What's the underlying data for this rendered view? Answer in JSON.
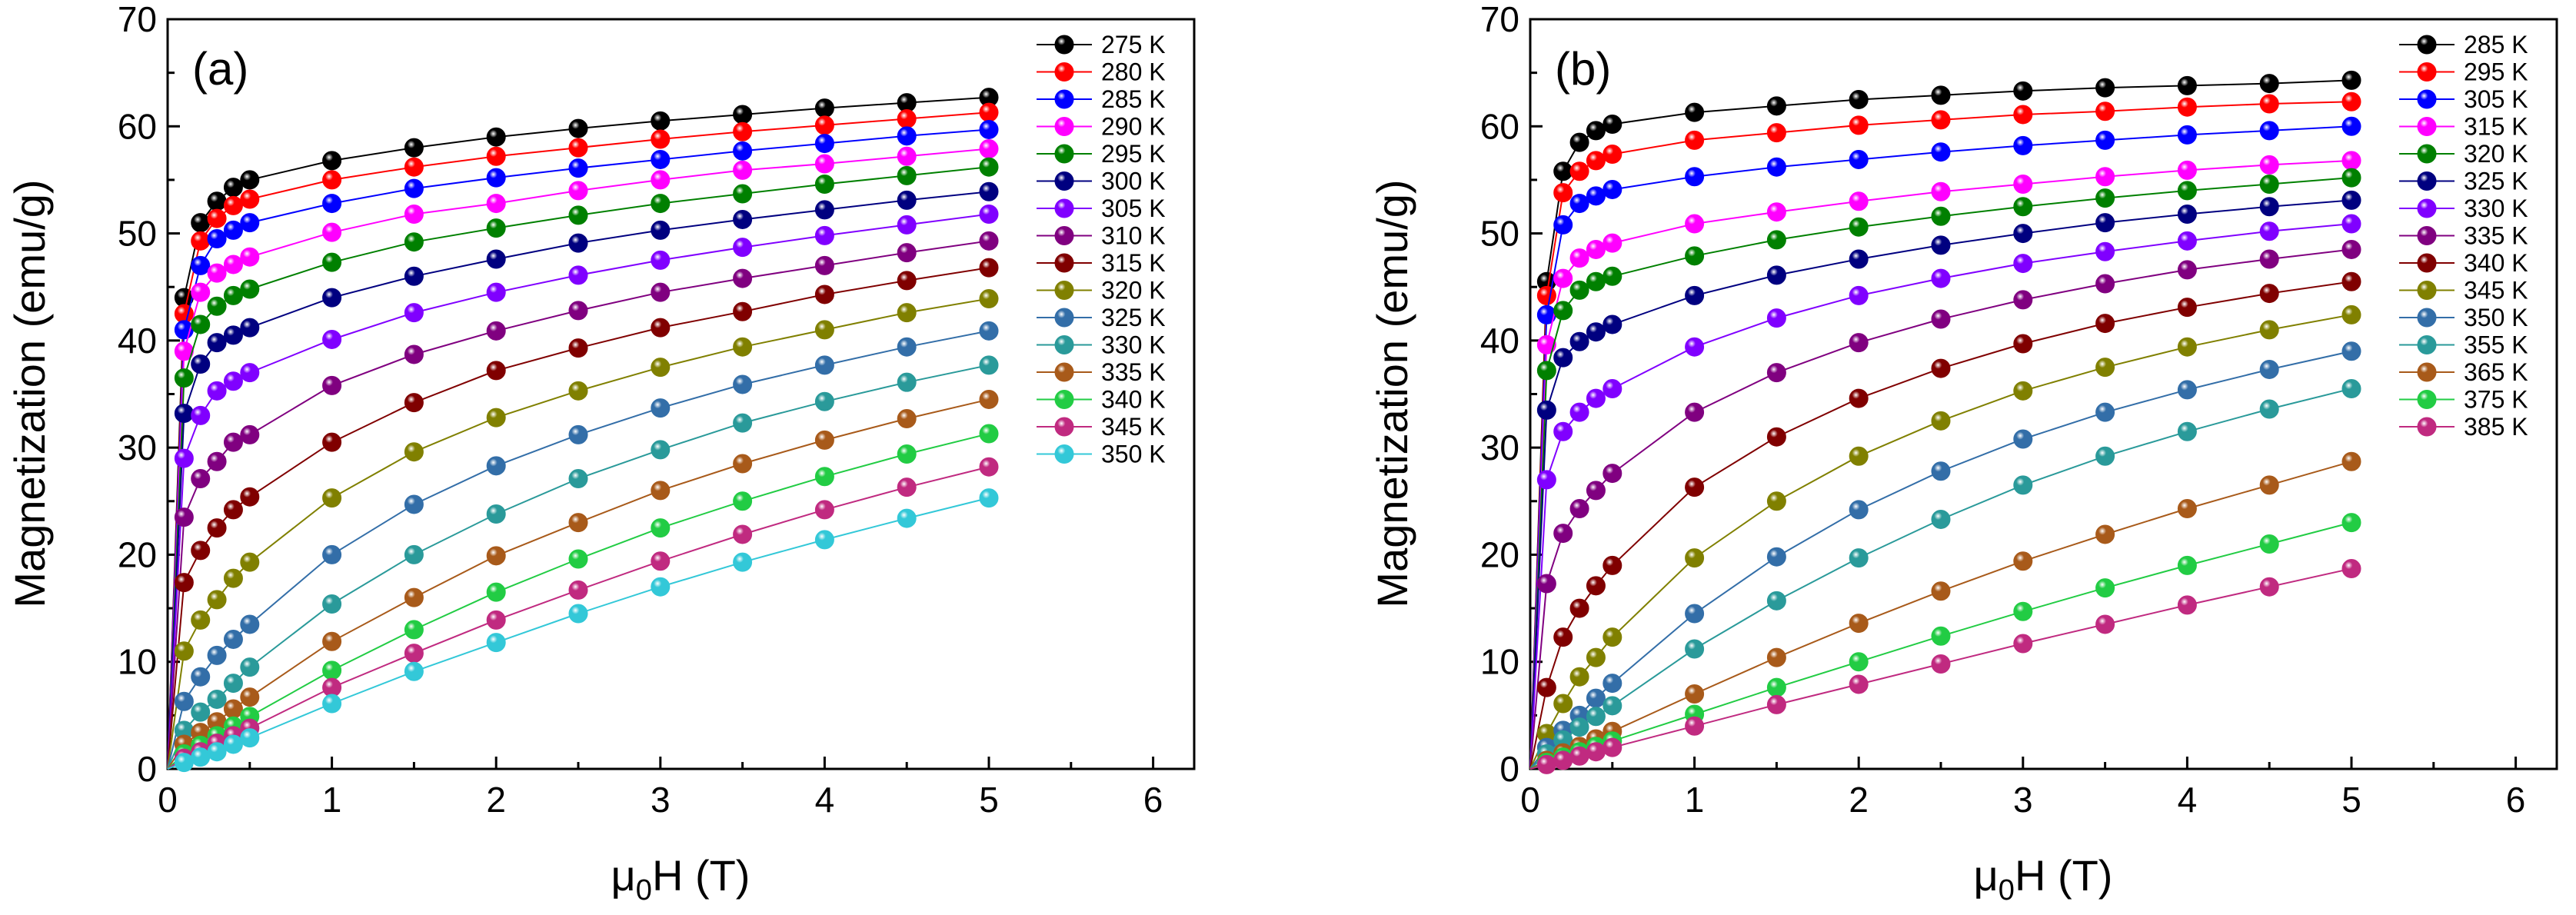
{
  "colors": {
    "275 K": "#000000",
    "280 K": "#ff0000",
    "285 K": "#0000ff",
    "290 K": "#ff00ff",
    "295 K": "#008000",
    "300 K": "#000080",
    "305 K": "#8000ff",
    "310 K": "#800080",
    "315 K": "#800000",
    "320 K": "#808000",
    "325 K": "#336ea8",
    "330 K": "#2a9a9a",
    "335 K": "#a85a1a",
    "340 K": "#22cc44",
    "345 K": "#c02a80",
    "350 K": "#33c8d8"
  },
  "colors_b": {
    "285 K": "#000000",
    "295 K": "#ff0000",
    "305 K": "#0000ff",
    "315 K": "#ff00ff",
    "320 K": "#008000",
    "325 K": "#000080",
    "330 K": "#8000ff",
    "335 K": "#800080",
    "340 K": "#800000",
    "345 K": "#808000",
    "350 K": "#336ea8",
    "355 K": "#2a9a9a",
    "365 K": "#a85a1a",
    "375 K": "#22cc44",
    "385 K": "#c02a80"
  },
  "chart_data": [
    {
      "panel_label": "(a)",
      "type": "line",
      "xlabel_main": "μ",
      "xlabel_sub": "0",
      "xlabel_rest": "H (T)",
      "ylabel": "Magnetization (emu/g)",
      "xlim": [
        0,
        6.25
      ],
      "ylim": [
        0,
        70
      ],
      "xticks": [
        "0",
        "1",
        "2",
        "3",
        "4",
        "5",
        "6"
      ],
      "yticks": [
        "0",
        "10",
        "20",
        "30",
        "40",
        "50",
        "60",
        "70"
      ],
      "legend_position": "top-right",
      "x": [
        0,
        0.1,
        0.2,
        0.3,
        0.4,
        0.5,
        1,
        1.5,
        2,
        2.5,
        3,
        3.5,
        4,
        4.5,
        5
      ],
      "series": [
        {
          "name": "275 K",
          "values": [
            0,
            44,
            51,
            53,
            54.3,
            55,
            56.8,
            58,
            59,
            59.8,
            60.5,
            61.1,
            61.7,
            62.2,
            62.7
          ]
        },
        {
          "name": "280 K",
          "values": [
            0,
            42.5,
            49.3,
            51.4,
            52.6,
            53.2,
            55,
            56.2,
            57.2,
            58,
            58.8,
            59.5,
            60.1,
            60.7,
            61.3
          ]
        },
        {
          "name": "285 K",
          "values": [
            0,
            41,
            47,
            49.5,
            50.3,
            51,
            52.8,
            54.2,
            55.2,
            56.1,
            56.9,
            57.7,
            58.4,
            59.1,
            59.7
          ]
        },
        {
          "name": "290 K",
          "values": [
            0,
            39,
            44.5,
            46.3,
            47.1,
            47.8,
            50.1,
            51.8,
            52.8,
            54,
            55,
            55.9,
            56.5,
            57.2,
            57.9
          ]
        },
        {
          "name": "295 K",
          "values": [
            0,
            36.5,
            41.5,
            43.2,
            44.2,
            44.8,
            47.3,
            49.2,
            50.5,
            51.7,
            52.8,
            53.7,
            54.6,
            55.4,
            56.2
          ]
        },
        {
          "name": "300 K",
          "values": [
            0,
            33.2,
            37.8,
            39.8,
            40.5,
            41.2,
            44,
            46,
            47.6,
            49.1,
            50.3,
            51.3,
            52.2,
            53.1,
            53.9
          ]
        },
        {
          "name": "305 K",
          "values": [
            0,
            29,
            33,
            35.3,
            36.2,
            37,
            40.1,
            42.6,
            44.5,
            46.1,
            47.5,
            48.7,
            49.8,
            50.8,
            51.8
          ]
        },
        {
          "name": "310 K",
          "values": [
            0,
            23.5,
            27.1,
            28.7,
            30.5,
            31.2,
            35.8,
            38.7,
            40.9,
            42.8,
            44.5,
            45.8,
            47,
            48.2,
            49.3
          ]
        },
        {
          "name": "315 K",
          "values": [
            0,
            17.4,
            20.4,
            22.5,
            24.2,
            25.4,
            30.5,
            34.2,
            37.2,
            39.3,
            41.2,
            42.7,
            44.3,
            45.6,
            46.8
          ]
        },
        {
          "name": "320 K",
          "values": [
            0,
            11,
            13.9,
            15.8,
            17.8,
            19.3,
            25.3,
            29.6,
            32.8,
            35.3,
            37.5,
            39.4,
            41,
            42.6,
            43.9
          ]
        },
        {
          "name": "325 K",
          "values": [
            0,
            6.3,
            8.6,
            10.6,
            12.1,
            13.5,
            20,
            24.7,
            28.3,
            31.2,
            33.7,
            35.9,
            37.7,
            39.4,
            40.9
          ]
        },
        {
          "name": "330 K",
          "values": [
            0,
            3.6,
            5.3,
            6.5,
            8,
            9.5,
            15.4,
            20,
            23.8,
            27.1,
            29.8,
            32.3,
            34.3,
            36.1,
            37.7
          ]
        },
        {
          "name": "335 K",
          "values": [
            0,
            2.3,
            3.4,
            4.4,
            5.6,
            6.7,
            11.9,
            16,
            19.9,
            23,
            26,
            28.5,
            30.7,
            32.7,
            34.5
          ]
        },
        {
          "name": "340 K",
          "values": [
            0,
            1.4,
            2.2,
            3.1,
            4,
            4.9,
            9.2,
            13,
            16.5,
            19.6,
            22.5,
            25,
            27.3,
            29.4,
            31.3
          ]
        },
        {
          "name": "345 K",
          "values": [
            0,
            1,
            1.6,
            2.4,
            3.1,
            3.8,
            7.6,
            10.8,
            13.9,
            16.7,
            19.4,
            21.9,
            24.2,
            26.3,
            28.2
          ]
        },
        {
          "name": "350 K",
          "values": [
            0,
            0.6,
            1.1,
            1.6,
            2.3,
            2.9,
            6.1,
            9.1,
            11.8,
            14.5,
            17,
            19.3,
            21.4,
            23.4,
            25.3
          ]
        }
      ]
    },
    {
      "panel_label": "(b)",
      "type": "line",
      "xlabel_main": "μ",
      "xlabel_sub": "0",
      "xlabel_rest": "H (T)",
      "ylabel": "Magnetization (emu/g)",
      "xlim": [
        0,
        6.25
      ],
      "ylim": [
        0,
        70
      ],
      "xticks": [
        "0",
        "1",
        "2",
        "3",
        "4",
        "5",
        "6"
      ],
      "yticks": [
        "0",
        "10",
        "20",
        "30",
        "40",
        "50",
        "60",
        "70"
      ],
      "legend_position": "top-right",
      "x": [
        0,
        0.1,
        0.2,
        0.3,
        0.4,
        0.5,
        1,
        1.5,
        2,
        2.5,
        3,
        3.5,
        4,
        4.5,
        5
      ],
      "series": [
        {
          "name": "285 K",
          "values": [
            0,
            45.5,
            55.8,
            58.5,
            59.6,
            60.2,
            61.3,
            61.9,
            62.5,
            62.9,
            63.3,
            63.6,
            63.8,
            64,
            64.3
          ]
        },
        {
          "name": "295 K",
          "values": [
            0,
            44.2,
            53.8,
            55.8,
            56.8,
            57.4,
            58.7,
            59.4,
            60.1,
            60.6,
            61.1,
            61.4,
            61.8,
            62.1,
            62.3
          ]
        },
        {
          "name": "305 K",
          "values": [
            0,
            42.4,
            50.8,
            52.8,
            53.5,
            54.1,
            55.3,
            56.2,
            56.9,
            57.6,
            58.2,
            58.7,
            59.2,
            59.6,
            60
          ]
        },
        {
          "name": "315 K",
          "values": [
            0,
            39.6,
            45.8,
            47.7,
            48.5,
            49.1,
            50.9,
            52,
            53,
            53.9,
            54.6,
            55.3,
            55.9,
            56.4,
            56.8
          ]
        },
        {
          "name": "320 K",
          "values": [
            0,
            37.2,
            42.8,
            44.7,
            45.5,
            46,
            47.9,
            49.4,
            50.6,
            51.6,
            52.5,
            53.3,
            54,
            54.6,
            55.2
          ]
        },
        {
          "name": "325 K",
          "values": [
            0,
            33.5,
            38.4,
            39.9,
            40.8,
            41.5,
            44.2,
            46.1,
            47.6,
            48.9,
            50,
            51,
            51.8,
            52.5,
            53.1
          ]
        },
        {
          "name": "330 K",
          "values": [
            0,
            27,
            31.5,
            33.3,
            34.6,
            35.5,
            39.4,
            42.1,
            44.2,
            45.8,
            47.2,
            48.3,
            49.3,
            50.2,
            50.9
          ]
        },
        {
          "name": "335 K",
          "values": [
            0,
            17.3,
            22,
            24.3,
            26,
            27.6,
            33.3,
            37,
            39.8,
            42,
            43.8,
            45.3,
            46.6,
            47.6,
            48.5
          ]
        },
        {
          "name": "340 K",
          "values": [
            0,
            7.6,
            12.3,
            15,
            17.1,
            19,
            26.3,
            31,
            34.6,
            37.4,
            39.7,
            41.6,
            43.1,
            44.4,
            45.5
          ]
        },
        {
          "name": "345 K",
          "values": [
            0,
            3.3,
            6.1,
            8.6,
            10.4,
            12.3,
            19.7,
            25,
            29.2,
            32.5,
            35.3,
            37.5,
            39.4,
            41,
            42.4
          ]
        },
        {
          "name": "350 K",
          "values": [
            0,
            2,
            3.6,
            5,
            6.6,
            8,
            14.5,
            19.8,
            24.2,
            27.8,
            30.8,
            33.3,
            35.4,
            37.3,
            39
          ]
        },
        {
          "name": "355 K",
          "values": [
            0,
            1.4,
            2.7,
            3.9,
            4.9,
            5.9,
            11.2,
            15.7,
            19.7,
            23.3,
            26.5,
            29.2,
            31.5,
            33.6,
            35.5
          ]
        },
        {
          "name": "365 K",
          "values": [
            0,
            0.8,
            1.5,
            2.1,
            2.8,
            3.5,
            7,
            10.4,
            13.6,
            16.6,
            19.4,
            21.9,
            24.3,
            26.5,
            28.7
          ]
        },
        {
          "name": "375 K",
          "values": [
            0,
            0.6,
            1.1,
            1.6,
            2.1,
            2.6,
            5.1,
            7.6,
            10,
            12.4,
            14.7,
            16.9,
            19,
            21,
            23
          ]
        },
        {
          "name": "385 K",
          "values": [
            0,
            0.4,
            0.8,
            1.2,
            1.6,
            2,
            4,
            6,
            7.9,
            9.8,
            11.7,
            13.5,
            15.3,
            17,
            18.7
          ]
        }
      ]
    }
  ]
}
